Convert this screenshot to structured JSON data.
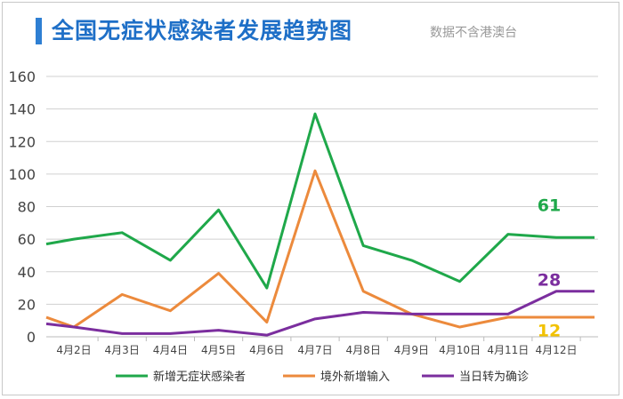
{
  "header": {
    "title": "全国无症状感染者发展趋势图",
    "note": "数据不含港澳台"
  },
  "colors": {
    "title": "#1e6fc7",
    "grid": "#d0d0d0",
    "green": "#1fa84a",
    "orange": "#ec8a3c",
    "purple": "#7b2e9e",
    "yellow_label": "#f2c200"
  },
  "chart_data": {
    "type": "line",
    "title": "全国无症状感染者发展趋势图",
    "categories": [
      "4月2日",
      "4月3日",
      "4月4日",
      "4月5日",
      "4月6日",
      "4月7日",
      "4月8日",
      "4月9日",
      "4月10日",
      "4月11日",
      "4月12日"
    ],
    "ylim": [
      0,
      160
    ],
    "yticks": [
      "0",
      "20",
      "40",
      "60",
      "80",
      "100",
      "120",
      "140",
      "160"
    ],
    "grid": true,
    "legend_position": "bottom",
    "series": [
      {
        "name": "新增无症状感染者",
        "color": "#1fa84a",
        "label_color": "#1fa84a",
        "values": [
          60,
          64,
          47,
          78,
          30,
          137,
          56,
          47,
          34,
          63,
          61
        ],
        "start_value": 57,
        "end_label": "61"
      },
      {
        "name": "境外新增输入",
        "color": "#ec8a3c",
        "label_color": "#f2c200",
        "values": [
          6,
          26,
          16,
          39,
          9,
          102,
          28,
          14,
          6,
          12,
          12
        ],
        "start_value": 12,
        "end_label": "12"
      },
      {
        "name": "当日转为确诊",
        "color": "#7b2e9e",
        "label_color": "#7b2e9e",
        "values": [
          6,
          2,
          2,
          4,
          1,
          11,
          15,
          14,
          14,
          14,
          28
        ],
        "start_value": 8,
        "end_label": "28"
      }
    ]
  }
}
